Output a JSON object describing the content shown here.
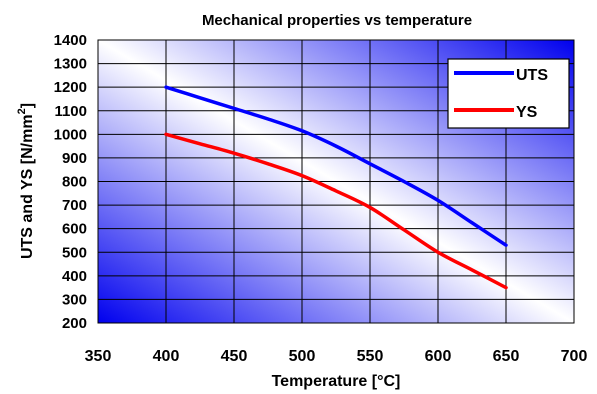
{
  "chart_data": {
    "type": "line",
    "title": "Mechanical properties vs temperature",
    "xlabel": "Temperature [°C]",
    "ylabel": "UTS and YS [N/mm",
    "ylabel_sup": "2",
    "ylabel_close": "]",
    "xlim": [
      350,
      700
    ],
    "ylim": [
      200,
      1400
    ],
    "xticks": [
      "350",
      "400",
      "450",
      "500",
      "550",
      "600",
      "650",
      "700"
    ],
    "yticks": [
      "200",
      "300",
      "400",
      "500",
      "600",
      "700",
      "800",
      "900",
      "1000",
      "1100",
      "1200",
      "1300",
      "1400"
    ],
    "grid": true,
    "legend_position": "top-right",
    "series": [
      {
        "name": "UTS",
        "color": "#0000ff",
        "x": [
          400,
          425,
          450,
          475,
          500,
          525,
          550,
          575,
          600,
          625,
          650
        ],
        "y": [
          1200,
          1155,
          1110,
          1065,
          1015,
          950,
          875,
          800,
          720,
          625,
          530
        ]
      },
      {
        "name": "YS",
        "color": "#ff0000",
        "x": [
          400,
          425,
          450,
          475,
          500,
          525,
          550,
          575,
          600,
          625,
          650
        ],
        "y": [
          1000,
          960,
          920,
          875,
          825,
          760,
          690,
          595,
          500,
          425,
          350
        ]
      }
    ]
  }
}
